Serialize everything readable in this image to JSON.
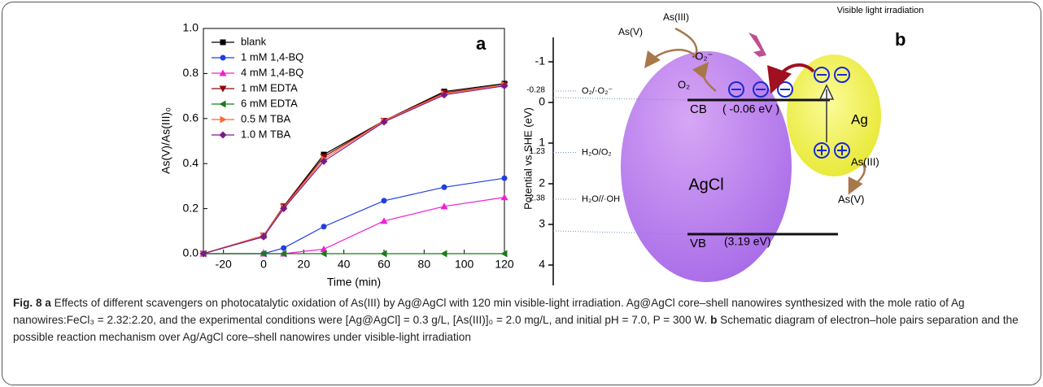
{
  "chart_data": {
    "type": "line",
    "panel_label": "a",
    "x_label": "Time (min)",
    "y_label": "As(V)/As(III)₀",
    "x": [
      -30,
      0,
      10,
      30,
      60,
      90,
      120
    ],
    "xlim": [
      -30,
      120
    ],
    "xticks": [
      -20,
      0,
      20,
      40,
      60,
      80,
      100,
      120
    ],
    "ylim": [
      0,
      1
    ],
    "yticks": [
      {
        "value": 0,
        "label": "0.0"
      },
      {
        "value": 0.2,
        "label": "0.2"
      },
      {
        "value": 0.4,
        "label": "0.4"
      },
      {
        "value": 0.6,
        "label": "0.6"
      },
      {
        "value": 0.8,
        "label": "0.8"
      },
      {
        "value": 1,
        "label": "1.0"
      }
    ],
    "legend": "upper left",
    "series": [
      {
        "name": "blank",
        "color": "#000000",
        "marker": "square",
        "values": [
          0,
          0.08,
          0.21,
          0.44,
          0.59,
          0.72,
          0.755
        ]
      },
      {
        "name": "1 mM 1,4-BQ",
        "color": "#1f3fe0",
        "marker": "circle",
        "values": [
          0,
          0,
          0.025,
          0.12,
          0.235,
          0.295,
          0.335
        ]
      },
      {
        "name": "4 mM 1,4-BQ",
        "color": "#f020d0",
        "marker": "triangle-up",
        "values": [
          0,
          0,
          0,
          0.02,
          0.145,
          0.21,
          0.25
        ]
      },
      {
        "name": "1 mM  EDTA",
        "color": "#8b0a0a",
        "marker": "triangle-down",
        "values": [
          0,
          0.08,
          0.21,
          0.43,
          0.59,
          0.715,
          0.75
        ]
      },
      {
        "name": "6 mM  EDTA",
        "color": "#1a7a1a",
        "marker": "triangle-left",
        "values": [
          0,
          0,
          0,
          0,
          0,
          0,
          0
        ]
      },
      {
        "name": "0.5 M  TBA",
        "color": "#ff6633",
        "marker": "triangle-right",
        "values": [
          0,
          0.08,
          0.205,
          0.42,
          0.59,
          0.71,
          0.75
        ]
      },
      {
        "name": "1.0 M  TBA",
        "color": "#7a1a8a",
        "marker": "diamond",
        "values": [
          0,
          0.075,
          0.2,
          0.41,
          0.585,
          0.705,
          0.745
        ]
      }
    ]
  },
  "diagram": {
    "panel_label": "b",
    "y_label": "Potential vs SHE (eV)",
    "ylim": [
      -1.6,
      4.5
    ],
    "yticks": [
      -1,
      0,
      1,
      2,
      3,
      4
    ],
    "levels": [
      {
        "value": -0.28,
        "couple": "O₂/·O₂⁻"
      },
      {
        "value": 1.23,
        "couple": "H₂O/O₂"
      },
      {
        "value": 2.38,
        "couple": "H₂O//·OH"
      }
    ],
    "light": "Visible light irradiation",
    "top_as3": "As(III)",
    "top_as5": "As(V)",
    "superoxide": "·O₂⁻",
    "oxygen": "O₂",
    "cb": "CB",
    "cb_energy": "( -0.06 eV )",
    "agcl": "AgCl",
    "vb": "VB",
    "vb_energy": "(3.19 eV)",
    "ag": "Ag",
    "right_as3": "As(III)",
    "right_as5": "As(V)"
  },
  "caption": {
    "fig": "Fig. 8",
    "a_label": "a",
    "a_text": "Effects of different scavengers on photocatalytic oxidation of As(III) by Ag@AgCl with 120 min visible-light irradiation. Ag@AgCl core–shell nanowires synthesized with the mole ratio of Ag nanowires:FeCl₃ = 2.32:2.20, and the experimental conditions were [Ag@AgCl] = 0.3 g/L, [As(III)]₀ = 2.0 mg/L, and initial pH = 7.0, P = 300 W.",
    "b_label": "b",
    "b_text": "Schematic diagram of electron–hole pairs separation and the possible reaction mechanism over Ag/AgCl core–shell nanowires under visible-light irradiation"
  }
}
